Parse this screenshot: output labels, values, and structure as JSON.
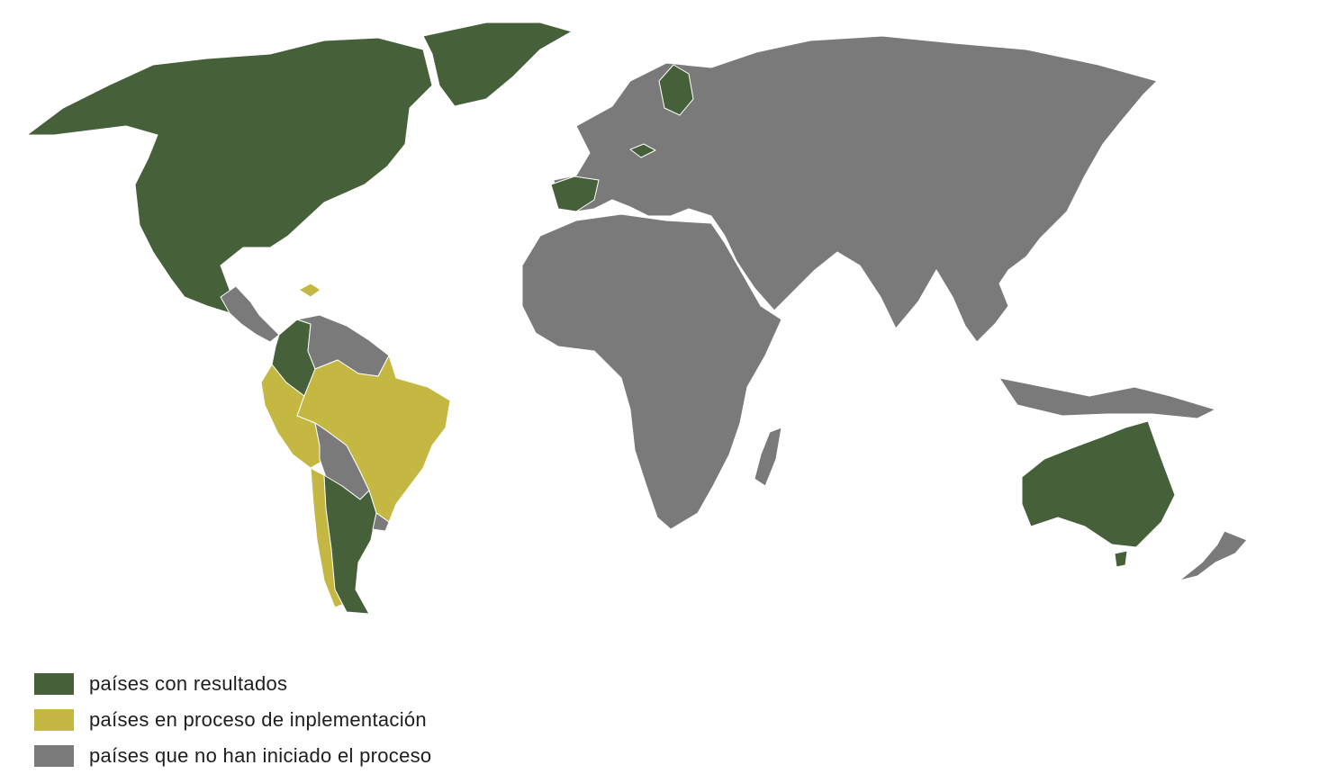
{
  "map": {
    "regions": [
      {
        "name": "north-america",
        "status": "results"
      },
      {
        "name": "greenland",
        "status": "results"
      },
      {
        "name": "central-america",
        "status": "none"
      },
      {
        "name": "caribbean",
        "status": "progress"
      },
      {
        "name": "colombia",
        "status": "results"
      },
      {
        "name": "venezuela-guianas",
        "status": "none"
      },
      {
        "name": "ecuador-peru",
        "status": "progress"
      },
      {
        "name": "brazil",
        "status": "progress"
      },
      {
        "name": "bolivia-paraguay",
        "status": "none"
      },
      {
        "name": "chile",
        "status": "progress"
      },
      {
        "name": "argentina",
        "status": "results"
      },
      {
        "name": "uruguay",
        "status": "none"
      },
      {
        "name": "spain",
        "status": "results"
      },
      {
        "name": "finland",
        "status": "results"
      },
      {
        "name": "czechia",
        "status": "results"
      },
      {
        "name": "eurasia",
        "status": "none"
      },
      {
        "name": "africa",
        "status": "none"
      },
      {
        "name": "madagascar",
        "status": "none"
      },
      {
        "name": "australia",
        "status": "results"
      },
      {
        "name": "new-zealand",
        "status": "none"
      }
    ]
  },
  "colors": {
    "results": "#46603a",
    "progress": "#c4b843",
    "none": "#7a7a7a"
  },
  "legend": {
    "items": [
      {
        "key": "results",
        "label": "países con resultados"
      },
      {
        "key": "progress",
        "label": "países en proceso de inplementación"
      },
      {
        "key": "none",
        "label": "países que no han iniciado el proceso"
      }
    ]
  }
}
